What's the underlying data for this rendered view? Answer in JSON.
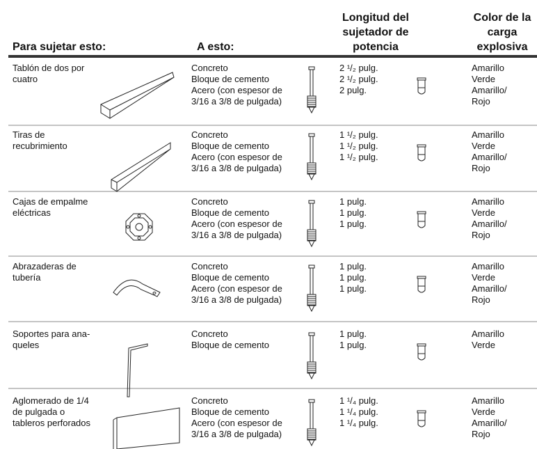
{
  "header": {
    "columns": [
      [
        "Para sujetar esto:"
      ],
      [
        "A esto:"
      ],
      [
        "Longitud del",
        "sujetador de",
        "potencia"
      ],
      [
        "Color de la",
        "carga",
        "explosiva"
      ]
    ]
  },
  "table": {
    "rows": [
      {
        "item": [
          "Tablón de dos por",
          "cuatro"
        ],
        "materials": [
          "Concreto",
          "Bloque de cemento",
          "Acero (con espesor de",
          "3/16 a 3/8 de pulgada)"
        ],
        "lengths": [
          "2 ¹/₂ pulg.",
          "2 ¹/₂ pulg.",
          "2 pulg."
        ],
        "colors": [
          "Amarillo",
          "Verde",
          "Amarillo/",
          "Rojo"
        ]
      },
      {
        "item": [
          "Tiras de",
          "recubrimiento"
        ],
        "materials": [
          "Concreto",
          "Bloque de cemento",
          "Acero (con espesor de",
          "3/16 a 3/8 de pulgada)"
        ],
        "lengths": [
          "1 ¹/₂ pulg.",
          "1 ¹/₂ pulg.",
          "1 ¹/₂ pulg."
        ],
        "colors": [
          "Amarillo",
          "Verde",
          "Amarillo/",
          "Rojo"
        ]
      },
      {
        "item": [
          "Cajas de empalme",
          "eléctricas"
        ],
        "materials": [
          "Concreto",
          "Bloque de cemento",
          "Acero (con espesor de",
          "3/16 a 3/8 de pulgada)"
        ],
        "lengths": [
          "1 pulg.",
          "1 pulg.",
          "1 pulg."
        ],
        "colors": [
          "Amarillo",
          "Verde",
          "Amarillo/",
          "Rojo"
        ]
      },
      {
        "item": [
          "Abrazaderas de",
          "tubería"
        ],
        "materials": [
          "Concreto",
          "Bloque de cemento",
          "Acero (con espesor de",
          "3/16 a 3/8 de pulgada)"
        ],
        "lengths": [
          "1 pulg.",
          "1 pulg.",
          "1 pulg."
        ],
        "colors": [
          "Amarillo",
          "Verde",
          "Amarillo/",
          "Rojo"
        ]
      },
      {
        "item": [
          "Soportes para ana-",
          "queles"
        ],
        "materials": [
          "Concreto",
          "Bloque de cemento"
        ],
        "lengths": [
          "1 pulg.",
          "1 pulg."
        ],
        "colors": [
          "Amarillo",
          "Verde"
        ]
      },
      {
        "item": [
          "Aglomerado de 1/4",
          "de pulgada o",
          "tableros perforados"
        ],
        "materials": [
          "Concreto",
          "Bloque de cemento",
          "Acero (con espesor de",
          "3/16 a 3/8 de pulgada)"
        ],
        "lengths": [
          "1 ¹/₄ pulg.",
          "1 ¹/₄ pulg.",
          "1 ¹/₄ pulg."
        ],
        "colors": [
          "Amarillo",
          "Verde",
          "Amarillo/",
          "Rojo"
        ]
      }
    ]
  }
}
